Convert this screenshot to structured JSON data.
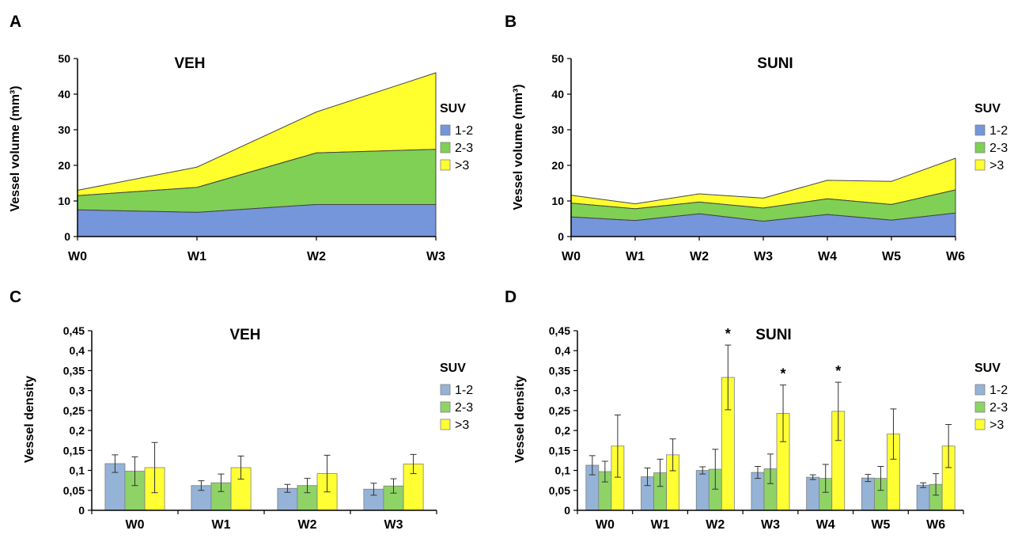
{
  "figure": {
    "panel_labels": [
      "A",
      "B",
      "C",
      "D"
    ]
  },
  "colors": {
    "band1": "#7596DA",
    "band2": "#7FD054",
    "band3": "#FFFF2E",
    "bar1": "#95B3D7",
    "bar2": "#8FD367",
    "bar3": "#FFFF33",
    "axis": "#000000"
  },
  "chart_data": [
    {
      "panel": "A",
      "type": "area",
      "stacked": true,
      "title": "VEH",
      "ylabel": "Vessel volume (mm³)",
      "xlabel": "",
      "categories": [
        "W0",
        "W1",
        "W2",
        "W3"
      ],
      "ylim": [
        0,
        50
      ],
      "yticks": [
        "0",
        "10",
        "20",
        "30",
        "40",
        "50"
      ],
      "legend": {
        "title": "SUV",
        "position": "right"
      },
      "series": [
        {
          "name": "1-2",
          "values": [
            7.5,
            6.8,
            9.0,
            9.0
          ]
        },
        {
          "name": "2-3",
          "values": [
            4.0,
            7.0,
            14.5,
            15.5
          ]
        },
        {
          "name": ">3",
          "values": [
            1.5,
            5.7,
            11.5,
            21.5
          ]
        }
      ]
    },
    {
      "panel": "B",
      "type": "area",
      "stacked": true,
      "title": "SUNI",
      "ylabel": "Vessel volume (mm³)",
      "xlabel": "",
      "categories": [
        "W0",
        "W1",
        "W2",
        "W3",
        "W4",
        "W5",
        "W6"
      ],
      "ylim": [
        0,
        50
      ],
      "yticks": [
        "0",
        "10",
        "20",
        "30",
        "40",
        "50"
      ],
      "legend": {
        "title": "SUV",
        "position": "right"
      },
      "series": [
        {
          "name": "1-2",
          "values": [
            5.5,
            4.5,
            6.4,
            4.3,
            6.2,
            4.6,
            6.6
          ]
        },
        {
          "name": "2-3",
          "values": [
            3.9,
            3.3,
            3.3,
            3.7,
            4.4,
            4.4,
            6.5
          ]
        },
        {
          "name": ">3",
          "values": [
            2.2,
            1.4,
            2.3,
            2.8,
            5.2,
            6.5,
            8.9
          ]
        }
      ]
    },
    {
      "panel": "C",
      "type": "bar",
      "title": "VEH",
      "ylabel": "Vessel density",
      "xlabel": "",
      "categories": [
        "W0",
        "W1",
        "W2",
        "W3"
      ],
      "ylim": [
        0,
        0.45
      ],
      "yticks": [
        "0",
        "0,05",
        "0,1",
        "0,15",
        "0,2",
        "0,25",
        "0,3",
        "0,35",
        "0,4",
        "0,45"
      ],
      "legend": {
        "title": "SUV",
        "position": "right"
      },
      "series": [
        {
          "name": "1-2",
          "values": [
            0.117,
            0.062,
            0.055,
            0.053
          ],
          "errors": [
            0.022,
            0.012,
            0.01,
            0.015
          ]
        },
        {
          "name": "2-3",
          "values": [
            0.098,
            0.069,
            0.062,
            0.061
          ],
          "errors": [
            0.036,
            0.022,
            0.018,
            0.018
          ]
        },
        {
          "name": ">3",
          "values": [
            0.107,
            0.107,
            0.092,
            0.116
          ],
          "errors": [
            0.063,
            0.029,
            0.046,
            0.024
          ]
        }
      ],
      "annotations": []
    },
    {
      "panel": "D",
      "type": "bar",
      "title": "SUNI",
      "ylabel": "Vessel density",
      "xlabel": "",
      "categories": [
        "W0",
        "W1",
        "W2",
        "W3",
        "W4",
        "W5",
        "W6"
      ],
      "ylim": [
        0,
        0.45
      ],
      "yticks": [
        "0",
        "0,05",
        "0,1",
        "0,15",
        "0,2",
        "0,25",
        "0,3",
        "0,35",
        "0,4",
        "0,45"
      ],
      "legend": {
        "title": "SUV",
        "position": "right"
      },
      "series": [
        {
          "name": "1-2",
          "values": [
            0.113,
            0.084,
            0.1,
            0.095,
            0.083,
            0.081,
            0.063
          ],
          "errors": [
            0.024,
            0.022,
            0.009,
            0.015,
            0.006,
            0.009,
            0.006
          ]
        },
        {
          "name": "2-3",
          "values": [
            0.097,
            0.094,
            0.103,
            0.104,
            0.08,
            0.08,
            0.065
          ],
          "errors": [
            0.026,
            0.034,
            0.05,
            0.037,
            0.035,
            0.03,
            0.027
          ]
        },
        {
          "name": ">3",
          "values": [
            0.161,
            0.139,
            0.333,
            0.243,
            0.248,
            0.191,
            0.161
          ],
          "errors": [
            0.078,
            0.04,
            0.081,
            0.071,
            0.073,
            0.063,
            0.054
          ]
        }
      ],
      "annotations": [
        {
          "category": "W2",
          "series": ">3",
          "text": "*"
        },
        {
          "category": "W3",
          "series": ">3",
          "text": "*"
        },
        {
          "category": "W4",
          "series": ">3",
          "text": "*"
        }
      ]
    }
  ]
}
